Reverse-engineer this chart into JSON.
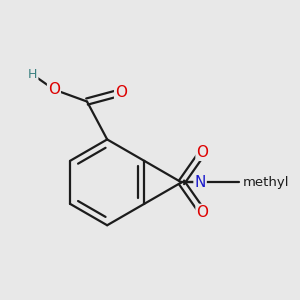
{
  "bg_color": "#e8e8e8",
  "bond_color": "#1c1c1c",
  "bond_width": 1.6,
  "atom_colors": {
    "O": "#dd0000",
    "N": "#1a1acc",
    "H": "#3a8080"
  },
  "font_size": 11,
  "font_size_h": 9,
  "font_size_methyl": 9.5
}
